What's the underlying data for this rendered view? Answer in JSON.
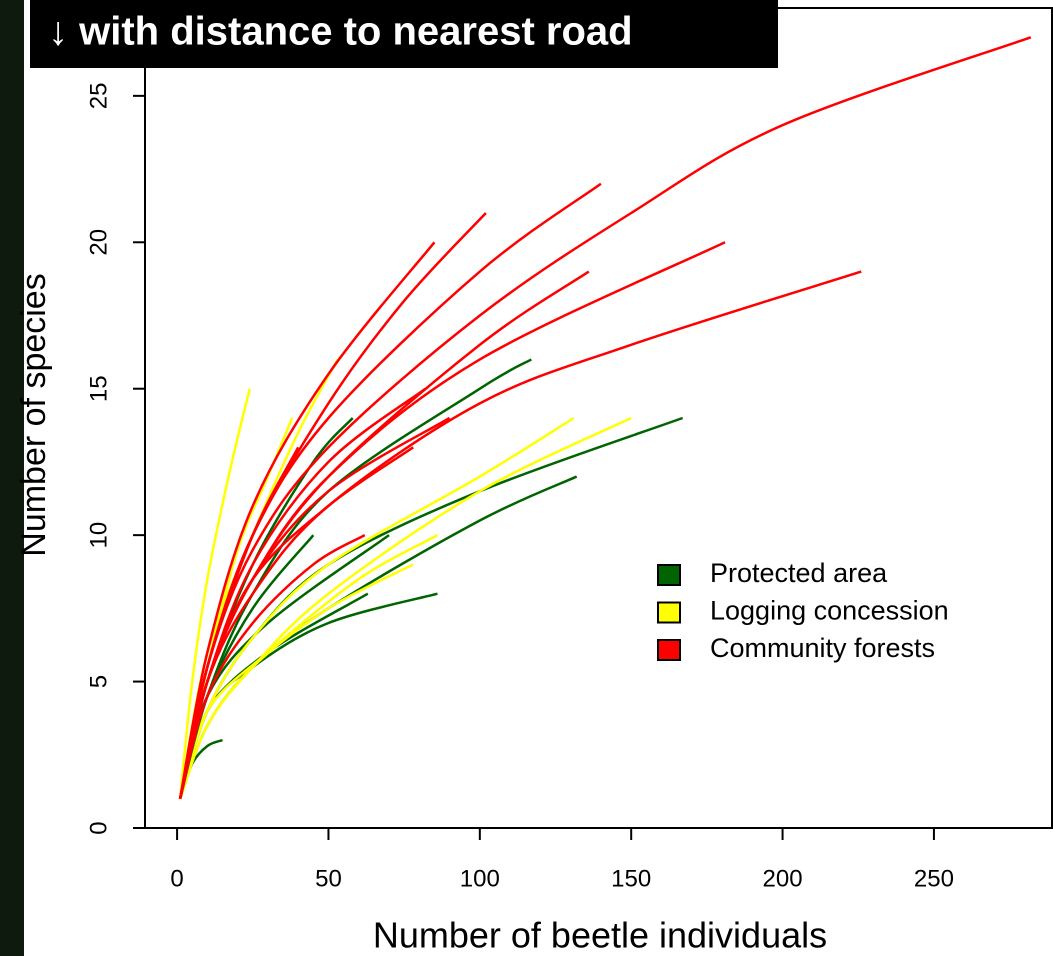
{
  "chart_data": {
    "type": "line",
    "title": "↓ with distance to nearest road",
    "x_label": "Number of beetle individuals",
    "y_label": "Number of species",
    "xlim": [
      -10.6,
      289
    ],
    "ylim": [
      0,
      28
    ],
    "xticks": [
      0,
      50,
      100,
      150,
      200,
      250
    ],
    "yticks": [
      0,
      5,
      10,
      15,
      20,
      25
    ],
    "legend": [
      {
        "name": "Protected area",
        "color": "#006400"
      },
      {
        "name": "Logging concession",
        "color": "#ffff00"
      },
      {
        "name": "Community forests",
        "color": "#ff0000"
      }
    ],
    "series": [
      {
        "color": "#006400",
        "x": [
          1,
          10,
          25,
          50,
          100,
          167
        ],
        "values": [
          1,
          4,
          6.5,
          9,
          11.5,
          14
        ]
      },
      {
        "color": "#006400",
        "x": [
          1,
          10,
          25,
          50,
          100,
          132
        ],
        "values": [
          1,
          3.5,
          5.5,
          7.5,
          10.5,
          12
        ]
      },
      {
        "color": "#006400",
        "x": [
          1,
          10,
          25,
          50,
          86
        ],
        "values": [
          1,
          4,
          5.5,
          7,
          8
        ]
      },
      {
        "color": "#006400",
        "x": [
          1,
          10,
          30,
          63
        ],
        "values": [
          1,
          4,
          6,
          8
        ]
      },
      {
        "color": "#006400",
        "x": [
          1,
          5,
          10,
          15
        ],
        "values": [
          1,
          2.2,
          2.8,
          3
        ]
      },
      {
        "color": "#006400",
        "x": [
          1,
          10,
          30,
          70
        ],
        "values": [
          1,
          4.5,
          7,
          10
        ]
      },
      {
        "color": "#006400",
        "x": [
          1,
          10,
          25,
          45
        ],
        "values": [
          1,
          4.5,
          7.5,
          10
        ]
      },
      {
        "color": "#ffff00",
        "x": [
          1,
          10,
          25,
          50,
          100,
          150
        ],
        "values": [
          1,
          3.5,
          5.5,
          8,
          11.5,
          14
        ]
      },
      {
        "color": "#ffff00",
        "x": [
          1,
          10,
          25,
          50,
          100,
          131
        ],
        "values": [
          1,
          4,
          6.5,
          9,
          12,
          14
        ]
      },
      {
        "color": "#ffff00",
        "x": [
          1,
          10,
          25,
          50,
          78
        ],
        "values": [
          1,
          3.5,
          5.5,
          7.5,
          9
        ]
      },
      {
        "color": "#ffff00",
        "x": [
          1,
          10,
          30,
          60,
          86
        ],
        "values": [
          1,
          4,
          6,
          8.5,
          10
        ]
      },
      {
        "color": "#ffff00",
        "x": [
          1,
          5,
          10,
          17,
          24
        ],
        "values": [
          1,
          5,
          8.5,
          12,
          15
        ]
      },
      {
        "color": "#ffff00",
        "x": [
          1,
          10,
          25,
          40,
          53
        ],
        "values": [
          1,
          6,
          10,
          13.5,
          16
        ]
      },
      {
        "color": "#ffff00",
        "x": [
          1,
          10,
          20,
          30,
          38
        ],
        "values": [
          1,
          5.5,
          9.5,
          12,
          14
        ]
      },
      {
        "color": "#006400",
        "x": [
          1,
          10,
          25,
          50,
          100,
          117
        ],
        "values": [
          1,
          4.5,
          8,
          11.5,
          15,
          16
        ]
      },
      {
        "color": "#006400",
        "x": [
          1,
          10,
          25,
          45,
          58
        ],
        "values": [
          1,
          5,
          9,
          12.5,
          14
        ]
      },
      {
        "color": "#ff0000",
        "x": [
          1,
          10,
          25,
          50,
          100,
          150,
          200,
          282
        ],
        "values": [
          1,
          5.5,
          9.5,
          13,
          17.5,
          21,
          24,
          27
        ]
      },
      {
        "color": "#ff0000",
        "x": [
          1,
          10,
          25,
          50,
          100,
          150,
          226
        ],
        "values": [
          1,
          5,
          8,
          11,
          14.5,
          16.5,
          19
        ]
      },
      {
        "color": "#ff0000",
        "x": [
          1,
          10,
          25,
          50,
          100,
          181
        ],
        "values": [
          1,
          5,
          8.5,
          12,
          16,
          20
        ]
      },
      {
        "color": "#ff0000",
        "x": [
          1,
          10,
          25,
          50,
          100,
          140
        ],
        "values": [
          1,
          5.5,
          10,
          14,
          19,
          22
        ]
      },
      {
        "color": "#ff0000",
        "x": [
          1,
          10,
          25,
          50,
          100,
          136
        ],
        "values": [
          1,
          5,
          8.5,
          12,
          16.5,
          19
        ]
      },
      {
        "color": "#ff0000",
        "x": [
          1,
          10,
          25,
          50,
          75,
          102
        ],
        "values": [
          1,
          5.5,
          10,
          14.5,
          18,
          21
        ]
      },
      {
        "color": "#ff0000",
        "x": [
          1,
          10,
          25,
          50,
          85
        ],
        "values": [
          1,
          6,
          11,
          15.5,
          20
        ]
      },
      {
        "color": "#ff0000",
        "x": [
          1,
          10,
          25,
          50,
          90
        ],
        "values": [
          1,
          5,
          8.5,
          11.5,
          14
        ]
      },
      {
        "color": "#ff0000",
        "x": [
          1,
          10,
          25,
          50,
          78
        ],
        "values": [
          1,
          5,
          8.5,
          11,
          13
        ]
      },
      {
        "color": "#ff0000",
        "x": [
          1,
          10,
          25,
          45,
          62
        ],
        "values": [
          1,
          4.5,
          7,
          9,
          10
        ]
      },
      {
        "color": "#ff0000",
        "x": [
          1,
          10,
          25,
          50,
          82
        ],
        "values": [
          1,
          5,
          9,
          12.5,
          15
        ]
      },
      {
        "color": "#ff0000",
        "x": [
          1,
          10,
          25,
          40
        ],
        "values": [
          1,
          5.5,
          10,
          13
        ]
      }
    ]
  }
}
